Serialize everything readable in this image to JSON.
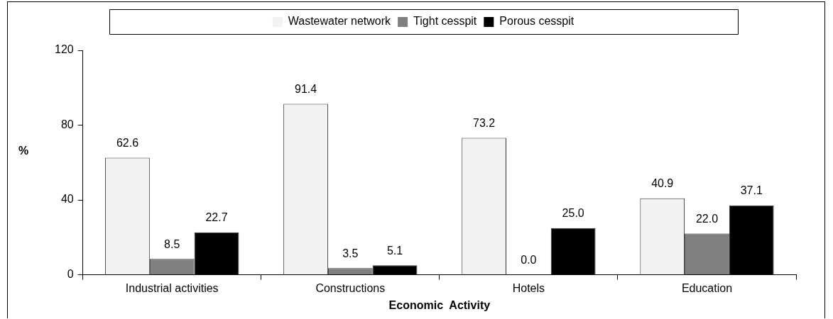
{
  "chart_data": {
    "type": "bar",
    "xlabel": "Economic  Activity",
    "ylabel": "%",
    "categories": [
      "Industrial activities",
      "Constructions",
      "Hotels",
      "Education"
    ],
    "series": [
      {
        "name": "Wastewater network",
        "color": "#f2f2f2",
        "values": [
          62.6,
          91.4,
          73.2,
          40.9
        ],
        "value_labels": [
          "62.6",
          "91.4",
          "73.2",
          "40.9"
        ]
      },
      {
        "name": "Tight cesspit",
        "color": "#808080",
        "values": [
          8.5,
          3.5,
          0.0,
          22.0
        ],
        "value_labels": [
          "8.5",
          "3.5",
          "0.0",
          "22.0"
        ]
      },
      {
        "name": "Porous cesspit",
        "color": "#000000",
        "values": [
          22.7,
          5.1,
          25.0,
          37.1
        ],
        "value_labels": [
          "22.7",
          "5.1",
          "25.0",
          "37.1"
        ]
      }
    ],
    "ylim": [
      0,
      120
    ],
    "yticks": [
      0,
      40,
      80,
      120
    ],
    "grid": false,
    "legend": "top"
  }
}
